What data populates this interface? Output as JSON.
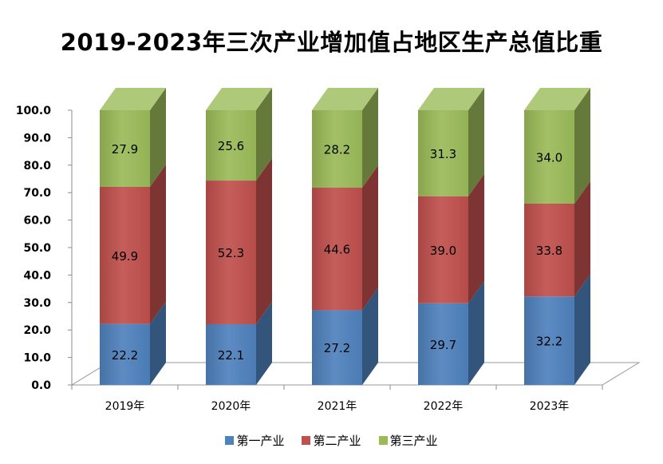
{
  "chart_data": {
    "type": "bar",
    "stacked": true,
    "title": "2019-2023年三次产业增加值占地区生产总值比重",
    "categories": [
      "2019年",
      "2020年",
      "2021年",
      "2022年",
      "2023年"
    ],
    "series": [
      {
        "name": "第一产业",
        "color": "#4F81BD",
        "values": [
          22.2,
          22.1,
          27.2,
          29.7,
          32.2
        ]
      },
      {
        "name": "第二产业",
        "color": "#C0504D",
        "values": [
          49.9,
          52.3,
          44.6,
          39.0,
          33.8
        ]
      },
      {
        "name": "第三产业",
        "color": "#9BBB59",
        "values": [
          27.9,
          25.6,
          28.2,
          31.3,
          34.0
        ]
      }
    ],
    "ylim": [
      0,
      100
    ],
    "yticks": [
      "0.0",
      "10.0",
      "20.0",
      "30.0",
      "40.0",
      "50.0",
      "60.0",
      "70.0",
      "80.0",
      "90.0",
      "100.0"
    ],
    "legend_position": "bottom",
    "grid": false
  }
}
